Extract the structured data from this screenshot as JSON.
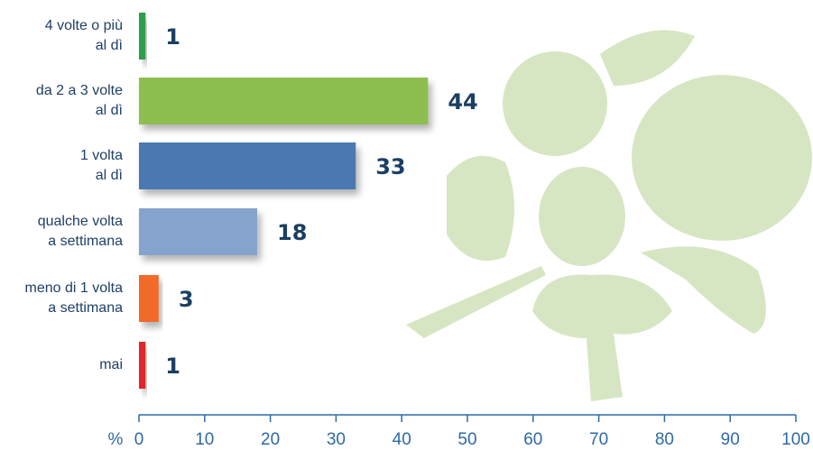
{
  "chart_data": {
    "type": "bar",
    "orientation": "horizontal",
    "categories": [
      [
        "4 volte o più",
        "al dì"
      ],
      [
        "da 2 a 3 volte",
        "al dì"
      ],
      [
        "1 volta",
        "al dì"
      ],
      [
        "qualche volta",
        "a settimana"
      ],
      [
        "meno di 1 volta",
        "a settimana"
      ],
      [
        "mai"
      ]
    ],
    "values": [
      1,
      44,
      33,
      18,
      3,
      1
    ],
    "colors": [
      "#2e9e49",
      "#8cbf4f",
      "#4a79b0",
      "#86a3cd",
      "#f26b2a",
      "#e0262b"
    ],
    "x_label": "%",
    "xlim": [
      0,
      100
    ],
    "xticks": [
      0,
      10,
      20,
      30,
      40,
      50,
      60,
      70,
      80,
      90,
      100
    ]
  }
}
